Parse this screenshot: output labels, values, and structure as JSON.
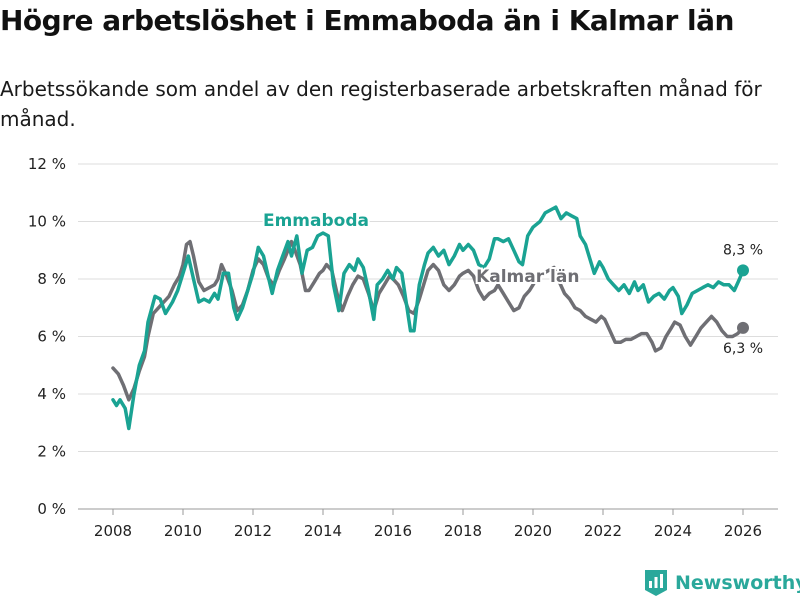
{
  "title": "Högre arbetslöshet i Emmaboda än i Kalmar län",
  "subtitle": "Arbetssökande som andel av den registerbaserade arbetskraften månad för månad.",
  "brand": "Newsworthy",
  "colors": {
    "emmaboda": "#1aa393",
    "kalmar": "#6f6f74",
    "grid": "#dddddd",
    "brand": "#2aa89b"
  },
  "chart_data": {
    "type": "line",
    "title": "Högre arbetslöshet i Emmaboda än i Kalmar län",
    "xlabel": "",
    "ylabel": "",
    "xlim": [
      2007.0,
      2027.0
    ],
    "ylim": [
      0,
      12
    ],
    "x_ticks": [
      2008,
      2010,
      2012,
      2014,
      2016,
      2018,
      2020,
      2022,
      2024,
      2026
    ],
    "x_tick_labels": [
      "2008",
      "2010",
      "2012",
      "2014",
      "2016",
      "2018",
      "2020",
      "2022",
      "2024",
      "2026"
    ],
    "y_ticks": [
      0,
      2,
      4,
      6,
      8,
      10,
      12
    ],
    "y_tick_labels": [
      "0 %",
      "2 %",
      "4 %",
      "6 %",
      "8 %",
      "10 %",
      "12 %"
    ],
    "grid": true,
    "series": [
      {
        "name": "Emmaboda",
        "end_label": "8,3 %",
        "points": [
          [
            2008.0,
            3.8
          ],
          [
            2008.1,
            3.6
          ],
          [
            2008.2,
            3.8
          ],
          [
            2008.35,
            3.5
          ],
          [
            2008.45,
            2.8
          ],
          [
            2008.6,
            4.0
          ],
          [
            2008.75,
            5.0
          ],
          [
            2008.9,
            5.5
          ],
          [
            2009.0,
            6.5
          ],
          [
            2009.2,
            7.4
          ],
          [
            2009.35,
            7.3
          ],
          [
            2009.5,
            6.8
          ],
          [
            2009.7,
            7.2
          ],
          [
            2009.85,
            7.6
          ],
          [
            2010.0,
            8.2
          ],
          [
            2010.15,
            8.8
          ],
          [
            2010.3,
            8.0
          ],
          [
            2010.45,
            7.2
          ],
          [
            2010.6,
            7.3
          ],
          [
            2010.75,
            7.2
          ],
          [
            2010.9,
            7.5
          ],
          [
            2011.0,
            7.3
          ],
          [
            2011.15,
            8.2
          ],
          [
            2011.3,
            8.2
          ],
          [
            2011.45,
            7.0
          ],
          [
            2011.55,
            6.6
          ],
          [
            2011.7,
            7.0
          ],
          [
            2011.85,
            7.6
          ],
          [
            2012.0,
            8.2
          ],
          [
            2012.15,
            9.1
          ],
          [
            2012.3,
            8.8
          ],
          [
            2012.45,
            8.0
          ],
          [
            2012.55,
            7.5
          ],
          [
            2012.7,
            8.3
          ],
          [
            2012.85,
            8.8
          ],
          [
            2013.0,
            9.3
          ],
          [
            2013.1,
            8.8
          ],
          [
            2013.25,
            9.5
          ],
          [
            2013.4,
            8.2
          ],
          [
            2013.55,
            9.0
          ],
          [
            2013.7,
            9.1
          ],
          [
            2013.85,
            9.5
          ],
          [
            2014.0,
            9.6
          ],
          [
            2014.15,
            9.5
          ],
          [
            2014.3,
            7.8
          ],
          [
            2014.45,
            6.9
          ],
          [
            2014.6,
            8.2
          ],
          [
            2014.75,
            8.5
          ],
          [
            2014.9,
            8.3
          ],
          [
            2015.0,
            8.7
          ],
          [
            2015.15,
            8.4
          ],
          [
            2015.3,
            7.6
          ],
          [
            2015.45,
            6.6
          ],
          [
            2015.55,
            7.8
          ],
          [
            2015.7,
            8.0
          ],
          [
            2015.85,
            8.3
          ],
          [
            2016.0,
            8.0
          ],
          [
            2016.1,
            8.4
          ],
          [
            2016.25,
            8.2
          ],
          [
            2016.4,
            7.0
          ],
          [
            2016.5,
            6.2
          ],
          [
            2016.6,
            6.2
          ],
          [
            2016.75,
            7.8
          ],
          [
            2016.9,
            8.5
          ],
          [
            2017.0,
            8.9
          ],
          [
            2017.15,
            9.1
          ],
          [
            2017.3,
            8.8
          ],
          [
            2017.45,
            9.0
          ],
          [
            2017.6,
            8.5
          ],
          [
            2017.75,
            8.8
          ],
          [
            2017.9,
            9.2
          ],
          [
            2018.0,
            9.0
          ],
          [
            2018.15,
            9.2
          ],
          [
            2018.3,
            9.0
          ],
          [
            2018.45,
            8.5
          ],
          [
            2018.6,
            8.4
          ],
          [
            2018.75,
            8.7
          ],
          [
            2018.9,
            9.4
          ],
          [
            2019.0,
            9.4
          ],
          [
            2019.15,
            9.3
          ],
          [
            2019.3,
            9.4
          ],
          [
            2019.45,
            9.0
          ],
          [
            2019.6,
            8.6
          ],
          [
            2019.7,
            8.5
          ],
          [
            2019.85,
            9.5
          ],
          [
            2020.0,
            9.8
          ],
          [
            2020.2,
            10.0
          ],
          [
            2020.35,
            10.3
          ],
          [
            2020.5,
            10.4
          ],
          [
            2020.65,
            10.5
          ],
          [
            2020.8,
            10.1
          ],
          [
            2020.95,
            10.3
          ],
          [
            2021.1,
            10.2
          ],
          [
            2021.25,
            10.1
          ],
          [
            2021.35,
            9.5
          ],
          [
            2021.5,
            9.2
          ],
          [
            2021.6,
            8.8
          ],
          [
            2021.75,
            8.2
          ],
          [
            2021.9,
            8.6
          ],
          [
            2022.0,
            8.4
          ],
          [
            2022.15,
            8.0
          ],
          [
            2022.3,
            7.8
          ],
          [
            2022.45,
            7.6
          ],
          [
            2022.6,
            7.8
          ],
          [
            2022.75,
            7.5
          ],
          [
            2022.9,
            7.9
          ],
          [
            2023.0,
            7.6
          ],
          [
            2023.15,
            7.8
          ],
          [
            2023.3,
            7.2
          ],
          [
            2023.45,
            7.4
          ],
          [
            2023.6,
            7.5
          ],
          [
            2023.75,
            7.3
          ],
          [
            2023.9,
            7.6
          ],
          [
            2024.0,
            7.7
          ],
          [
            2024.15,
            7.4
          ],
          [
            2024.25,
            6.8
          ],
          [
            2024.4,
            7.1
          ],
          [
            2024.55,
            7.5
          ],
          [
            2024.7,
            7.6
          ],
          [
            2024.85,
            7.7
          ],
          [
            2025.0,
            7.8
          ],
          [
            2025.15,
            7.7
          ],
          [
            2025.3,
            7.9
          ],
          [
            2025.45,
            7.8
          ],
          [
            2025.6,
            7.8
          ],
          [
            2025.75,
            7.6
          ],
          [
            2025.9,
            8.0
          ],
          [
            2026.0,
            8.3
          ]
        ]
      },
      {
        "name": "Kalmar län",
        "end_label": "6,3 %",
        "points": [
          [
            2008.0,
            4.9
          ],
          [
            2008.15,
            4.7
          ],
          [
            2008.3,
            4.3
          ],
          [
            2008.45,
            3.8
          ],
          [
            2008.6,
            4.2
          ],
          [
            2008.75,
            4.8
          ],
          [
            2008.9,
            5.3
          ],
          [
            2009.0,
            6.0
          ],
          [
            2009.15,
            6.8
          ],
          [
            2009.3,
            7.0
          ],
          [
            2009.45,
            7.2
          ],
          [
            2009.6,
            7.4
          ],
          [
            2009.75,
            7.8
          ],
          [
            2009.9,
            8.1
          ],
          [
            2010.0,
            8.5
          ],
          [
            2010.1,
            9.2
          ],
          [
            2010.2,
            9.3
          ],
          [
            2010.3,
            8.8
          ],
          [
            2010.45,
            7.9
          ],
          [
            2010.6,
            7.6
          ],
          [
            2010.75,
            7.7
          ],
          [
            2010.9,
            7.8
          ],
          [
            2011.0,
            8.0
          ],
          [
            2011.1,
            8.5
          ],
          [
            2011.25,
            8.1
          ],
          [
            2011.4,
            7.6
          ],
          [
            2011.55,
            6.9
          ],
          [
            2011.7,
            7.1
          ],
          [
            2011.85,
            7.6
          ],
          [
            2012.0,
            8.3
          ],
          [
            2012.15,
            8.7
          ],
          [
            2012.3,
            8.5
          ],
          [
            2012.45,
            8.0
          ],
          [
            2012.6,
            7.8
          ],
          [
            2012.75,
            8.3
          ],
          [
            2012.9,
            8.7
          ],
          [
            2013.0,
            9.0
          ],
          [
            2013.1,
            9.3
          ],
          [
            2013.2,
            9.0
          ],
          [
            2013.35,
            8.5
          ],
          [
            2013.5,
            7.6
          ],
          [
            2013.6,
            7.6
          ],
          [
            2013.75,
            7.9
          ],
          [
            2013.9,
            8.2
          ],
          [
            2014.0,
            8.3
          ],
          [
            2014.1,
            8.5
          ],
          [
            2014.25,
            8.3
          ],
          [
            2014.4,
            7.5
          ],
          [
            2014.55,
            6.9
          ],
          [
            2014.7,
            7.4
          ],
          [
            2014.85,
            7.8
          ],
          [
            2015.0,
            8.1
          ],
          [
            2015.15,
            8.0
          ],
          [
            2015.3,
            7.5
          ],
          [
            2015.45,
            6.9
          ],
          [
            2015.6,
            7.5
          ],
          [
            2015.75,
            7.8
          ],
          [
            2015.9,
            8.1
          ],
          [
            2016.0,
            8.0
          ],
          [
            2016.15,
            7.8
          ],
          [
            2016.3,
            7.4
          ],
          [
            2016.45,
            6.9
          ],
          [
            2016.6,
            6.8
          ],
          [
            2016.75,
            7.3
          ],
          [
            2016.9,
            7.9
          ],
          [
            2017.0,
            8.3
          ],
          [
            2017.15,
            8.5
          ],
          [
            2017.3,
            8.3
          ],
          [
            2017.45,
            7.8
          ],
          [
            2017.6,
            7.6
          ],
          [
            2017.75,
            7.8
          ],
          [
            2017.9,
            8.1
          ],
          [
            2018.0,
            8.2
          ],
          [
            2018.15,
            8.3
          ],
          [
            2018.3,
            8.1
          ],
          [
            2018.45,
            7.6
          ],
          [
            2018.6,
            7.3
          ],
          [
            2018.75,
            7.5
          ],
          [
            2018.9,
            7.6
          ],
          [
            2019.0,
            7.8
          ],
          [
            2019.15,
            7.5
          ],
          [
            2019.3,
            7.2
          ],
          [
            2019.45,
            6.9
          ],
          [
            2019.6,
            7.0
          ],
          [
            2019.75,
            7.4
          ],
          [
            2019.9,
            7.6
          ],
          [
            2020.0,
            7.8
          ],
          [
            2020.15,
            8.1
          ],
          [
            2020.3,
            8.2
          ],
          [
            2020.45,
            8.3
          ],
          [
            2020.6,
            8.4
          ],
          [
            2020.75,
            7.9
          ],
          [
            2020.9,
            7.5
          ],
          [
            2021.05,
            7.3
          ],
          [
            2021.2,
            7.0
          ],
          [
            2021.35,
            6.9
          ],
          [
            2021.5,
            6.7
          ],
          [
            2021.65,
            6.6
          ],
          [
            2021.8,
            6.5
          ],
          [
            2021.95,
            6.7
          ],
          [
            2022.05,
            6.6
          ],
          [
            2022.2,
            6.2
          ],
          [
            2022.35,
            5.8
          ],
          [
            2022.5,
            5.8
          ],
          [
            2022.65,
            5.9
          ],
          [
            2022.8,
            5.9
          ],
          [
            2022.95,
            6.0
          ],
          [
            2023.1,
            6.1
          ],
          [
            2023.25,
            6.1
          ],
          [
            2023.4,
            5.8
          ],
          [
            2023.5,
            5.5
          ],
          [
            2023.65,
            5.6
          ],
          [
            2023.8,
            6.0
          ],
          [
            2023.95,
            6.3
          ],
          [
            2024.05,
            6.5
          ],
          [
            2024.2,
            6.4
          ],
          [
            2024.35,
            6.0
          ],
          [
            2024.5,
            5.7
          ],
          [
            2024.65,
            6.0
          ],
          [
            2024.8,
            6.3
          ],
          [
            2024.95,
            6.5
          ],
          [
            2025.1,
            6.7
          ],
          [
            2025.25,
            6.5
          ],
          [
            2025.4,
            6.2
          ],
          [
            2025.55,
            6.0
          ],
          [
            2025.7,
            6.0
          ],
          [
            2025.85,
            6.1
          ],
          [
            2026.0,
            6.3
          ]
        ]
      }
    ],
    "annotations": [
      {
        "text": "Emmaboda",
        "series": "Emmaboda",
        "at": [
          2013.8,
          9.85
        ]
      },
      {
        "text": "Kalmar län",
        "series": "Kalmar län",
        "at": [
          2019.85,
          7.9
        ]
      }
    ]
  }
}
